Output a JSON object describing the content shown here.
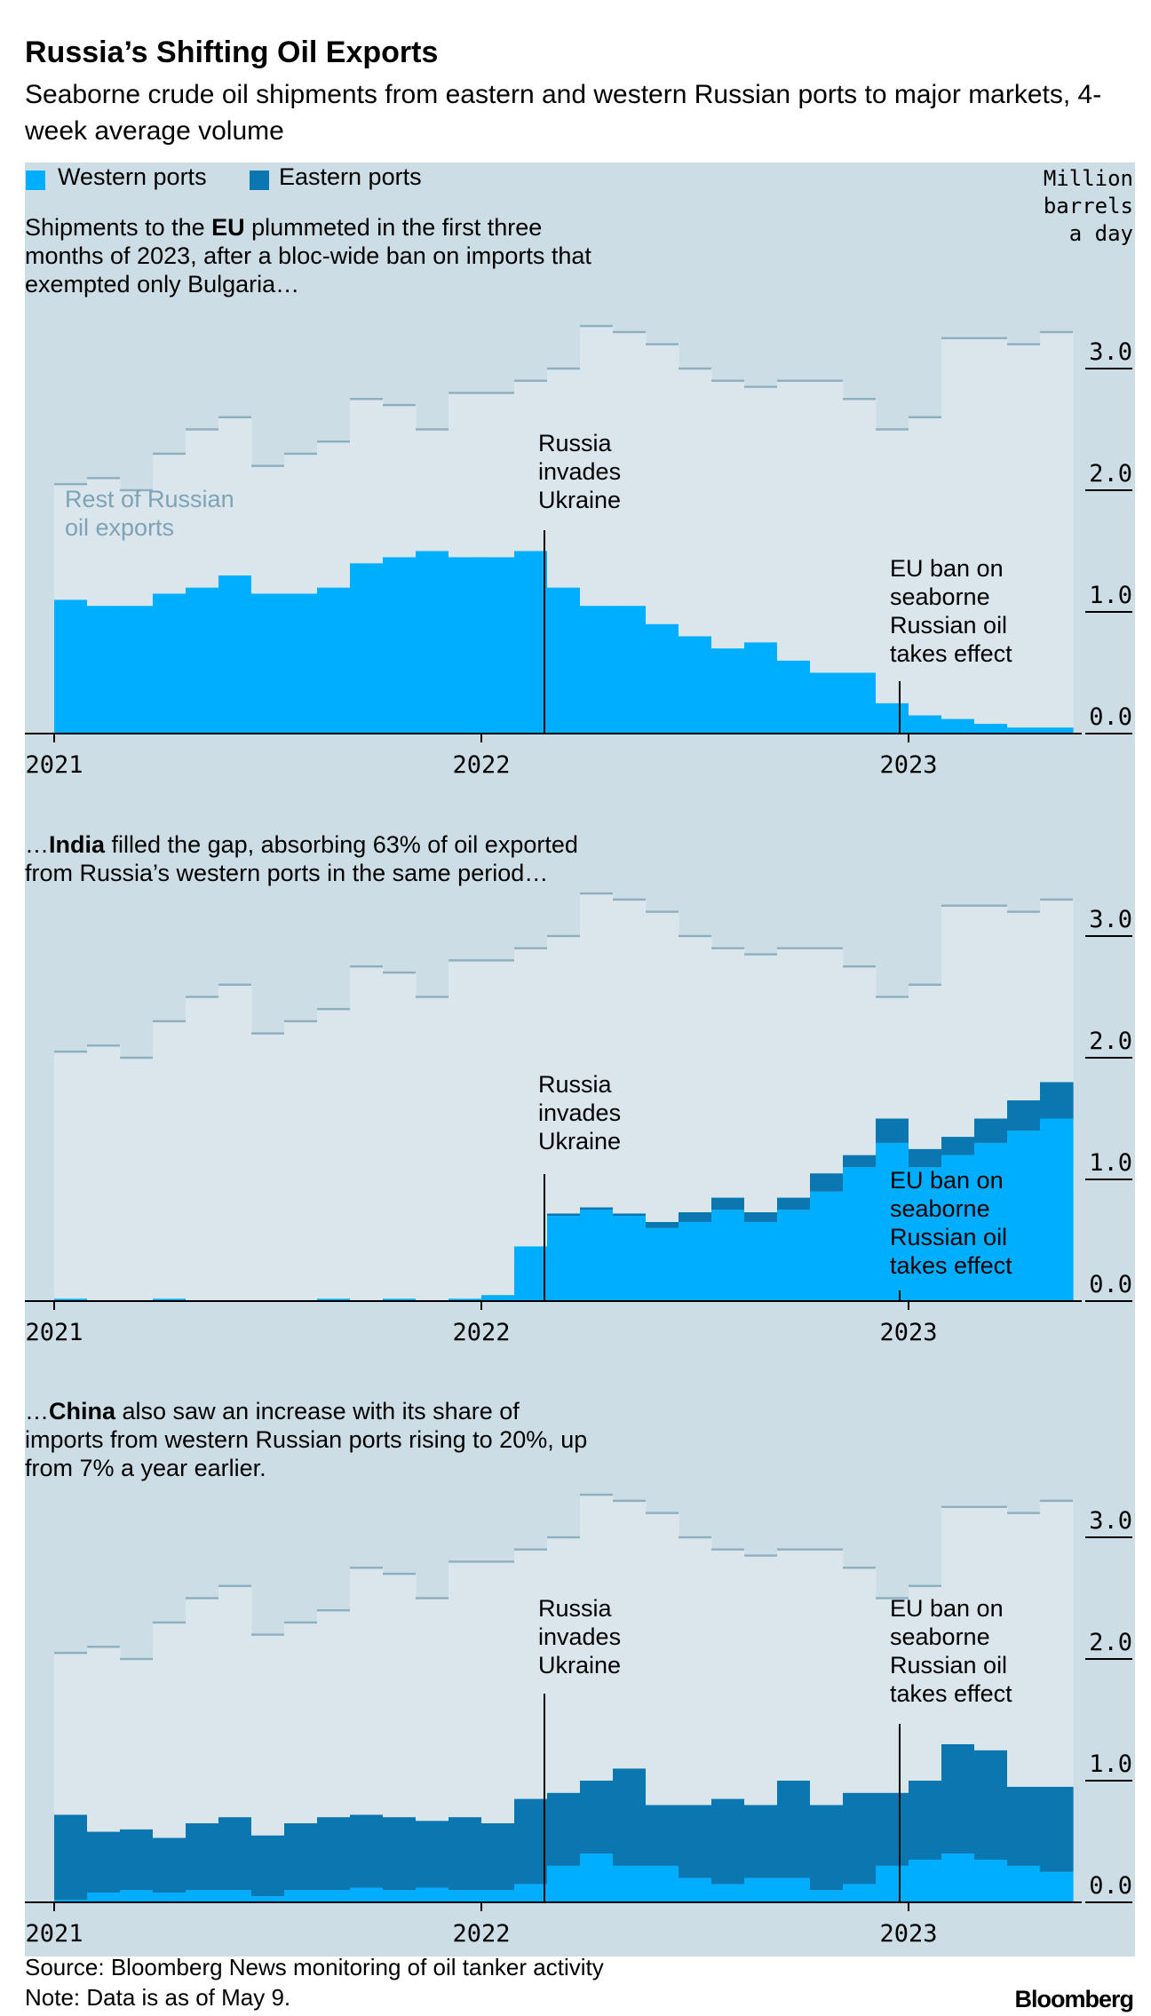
{
  "title": "Russia’s Shifting Oil Exports",
  "subtitle": "Seaborne crude oil shipments from eastern and western Russian ports to major markets, 4-week average volume",
  "y_label": "Million barrels a day",
  "source": "Source: Bloomberg News monitoring of oil tanker activity",
  "note": "Note: Data is as of May 9.",
  "brand": "Bloomberg",
  "chart_data": [
    {
      "type": "bar",
      "stacked": true,
      "note": [
        "Shipments to the ",
        "EU",
        " plummeted in the first three months of 2023, after a bloc-wide ban on imports that exempted only Bulgaria…"
      ],
      "annotations": [
        "Russia invades Ukraine",
        "EU ban on seaborne Russian oil takes effect"
      ],
      "categories": [
        "2021",
        null,
        null,
        null,
        null,
        null,
        null,
        null,
        null,
        null,
        null,
        null,
        null,
        "2022",
        null,
        null,
        null,
        null,
        null,
        null,
        null,
        null,
        null,
        null,
        null,
        null,
        "2023",
        null,
        null,
        null,
        null
      ],
      "ylim": [
        0,
        4
      ],
      "yticks": [
        {
          "value": 0,
          "label": "0.0"
        },
        {
          "value": 1,
          "label": "1.0"
        },
        {
          "value": 2,
          "label": "2.0"
        },
        {
          "value": 3,
          "label": "3.0"
        }
      ],
      "series": [
        {
          "name": "Western ports",
          "color": "#00aeff",
          "values": [
            1.1,
            1.05,
            1.05,
            1.15,
            1.2,
            1.3,
            1.15,
            1.15,
            1.2,
            1.4,
            1.45,
            1.5,
            1.45,
            1.45,
            1.5,
            1.2,
            1.05,
            1.05,
            0.9,
            0.8,
            0.7,
            0.75,
            0.6,
            0.5,
            0.5,
            0.25,
            0.15,
            0.12,
            0.08,
            0.05,
            0.05
          ]
        },
        {
          "name": "Eastern ports",
          "color": "#0a77b0",
          "values": [
            0,
            0,
            0,
            0,
            0,
            0,
            0,
            0,
            0,
            0,
            0,
            0,
            0,
            0,
            0,
            0,
            0,
            0,
            0,
            0,
            0,
            0,
            0,
            0,
            0,
            0,
            0,
            0,
            0,
            0,
            0
          ]
        },
        {
          "name": "Rest of Russian oil exports",
          "color": "#dae6ec",
          "outline": "#8eafc0",
          "values": [
            0.95,
            1.05,
            0.95,
            1.15,
            1.3,
            1.3,
            1.05,
            1.15,
            1.2,
            1.35,
            1.25,
            1.0,
            1.35,
            1.35,
            1.4,
            1.8,
            2.3,
            2.25,
            2.3,
            2.2,
            2.2,
            2.1,
            2.3,
            2.4,
            2.25,
            2.25,
            2.45,
            3.13,
            3.17,
            3.15,
            3.25
          ]
        }
      ]
    },
    {
      "type": "bar",
      "stacked": true,
      "note": [
        "…",
        "India",
        " filled the gap, absorbing 63% of oil exported from Russia’s western ports in the same period…"
      ],
      "annotations": [
        "Russia invades Ukraine",
        "EU ban on seaborne Russian oil takes effect"
      ],
      "categories": [
        "2021",
        null,
        null,
        null,
        null,
        null,
        null,
        null,
        null,
        null,
        null,
        null,
        null,
        "2022",
        null,
        null,
        null,
        null,
        null,
        null,
        null,
        null,
        null,
        null,
        null,
        null,
        "2023",
        null,
        null,
        null,
        null
      ],
      "ylim": [
        0,
        4
      ],
      "yticks": [
        {
          "value": 0,
          "label": "0.0"
        },
        {
          "value": 1,
          "label": "1.0"
        },
        {
          "value": 2,
          "label": "2.0"
        },
        {
          "value": 3,
          "label": "3.0"
        }
      ],
      "series": [
        {
          "color": "#00aeff",
          "values": [
            0.02,
            0,
            0,
            0.02,
            0,
            0,
            0,
            0,
            0.02,
            0,
            0.02,
            0,
            0.02,
            0.05,
            0.45,
            0.7,
            0.75,
            0.7,
            0.6,
            0.65,
            0.75,
            0.65,
            0.75,
            0.9,
            1.1,
            1.3,
            1.1,
            1.2,
            1.3,
            1.4,
            1.5
          ]
        },
        {
          "color": "#0a77b0",
          "values": [
            0,
            0,
            0,
            0,
            0,
            0,
            0,
            0,
            0,
            0,
            0,
            0,
            0,
            0,
            0,
            0.02,
            0.02,
            0.02,
            0.05,
            0.08,
            0.1,
            0.08,
            0.1,
            0.15,
            0.1,
            0.2,
            0.15,
            0.15,
            0.2,
            0.25,
            0.3
          ]
        },
        {
          "color": "#dae6ec",
          "outline": "#8eafc0",
          "values": [
            2.03,
            2.1,
            2.0,
            2.28,
            2.5,
            2.6,
            2.2,
            2.3,
            2.38,
            2.75,
            2.68,
            2.5,
            2.78,
            2.75,
            2.45,
            2.28,
            2.58,
            2.58,
            2.55,
            2.27,
            2.05,
            2.12,
            2.05,
            1.85,
            1.55,
            1.0,
            1.35,
            1.9,
            1.75,
            1.55,
            1.5
          ]
        }
      ]
    },
    {
      "type": "bar",
      "stacked": true,
      "note": [
        "…",
        "China",
        " also saw an increase with its share of imports from western Russian ports rising to 20%, up from 7% a year earlier."
      ],
      "annotations": [
        "Russia invades Ukraine",
        "EU ban on seaborne Russian oil takes effect"
      ],
      "categories": [
        "2021",
        null,
        null,
        null,
        null,
        null,
        null,
        null,
        null,
        null,
        null,
        null,
        null,
        "2022",
        null,
        null,
        null,
        null,
        null,
        null,
        null,
        null,
        null,
        null,
        null,
        null,
        "2023",
        null,
        null,
        null,
        null
      ],
      "ylim": [
        0,
        4
      ],
      "yticks": [
        {
          "value": 0,
          "label": "0.0"
        },
        {
          "value": 1,
          "label": "1.0"
        },
        {
          "value": 2,
          "label": "2.0"
        },
        {
          "value": 3,
          "label": "3.0"
        }
      ],
      "series": [
        {
          "color": "#00aeff",
          "values": [
            0.02,
            0.08,
            0.1,
            0.08,
            0.1,
            0.1,
            0.05,
            0.1,
            0.1,
            0.12,
            0.1,
            0.12,
            0.1,
            0.1,
            0.15,
            0.3,
            0.4,
            0.3,
            0.3,
            0.2,
            0.15,
            0.2,
            0.2,
            0.1,
            0.15,
            0.3,
            0.35,
            0.4,
            0.35,
            0.3,
            0.25
          ]
        },
        {
          "color": "#0a77b0",
          "values": [
            0.7,
            0.5,
            0.5,
            0.45,
            0.55,
            0.6,
            0.5,
            0.55,
            0.6,
            0.6,
            0.6,
            0.55,
            0.6,
            0.55,
            0.7,
            0.6,
            0.6,
            0.8,
            0.5,
            0.6,
            0.7,
            0.6,
            0.8,
            0.7,
            0.75,
            0.6,
            0.65,
            0.9,
            0.9,
            0.65,
            0.7
          ]
        },
        {
          "color": "#dae6ec",
          "outline": "#8eafc0",
          "values": [
            1.33,
            1.52,
            1.4,
            1.77,
            1.85,
            1.9,
            1.65,
            1.65,
            1.7,
            2.03,
            2.0,
            1.83,
            2.1,
            2.15,
            2.05,
            2.1,
            2.35,
            2.2,
            2.4,
            2.2,
            2.05,
            2.05,
            1.9,
            2.1,
            1.85,
            1.6,
            1.6,
            1.95,
            2.0,
            2.25,
            2.35
          ]
        }
      ]
    }
  ]
}
